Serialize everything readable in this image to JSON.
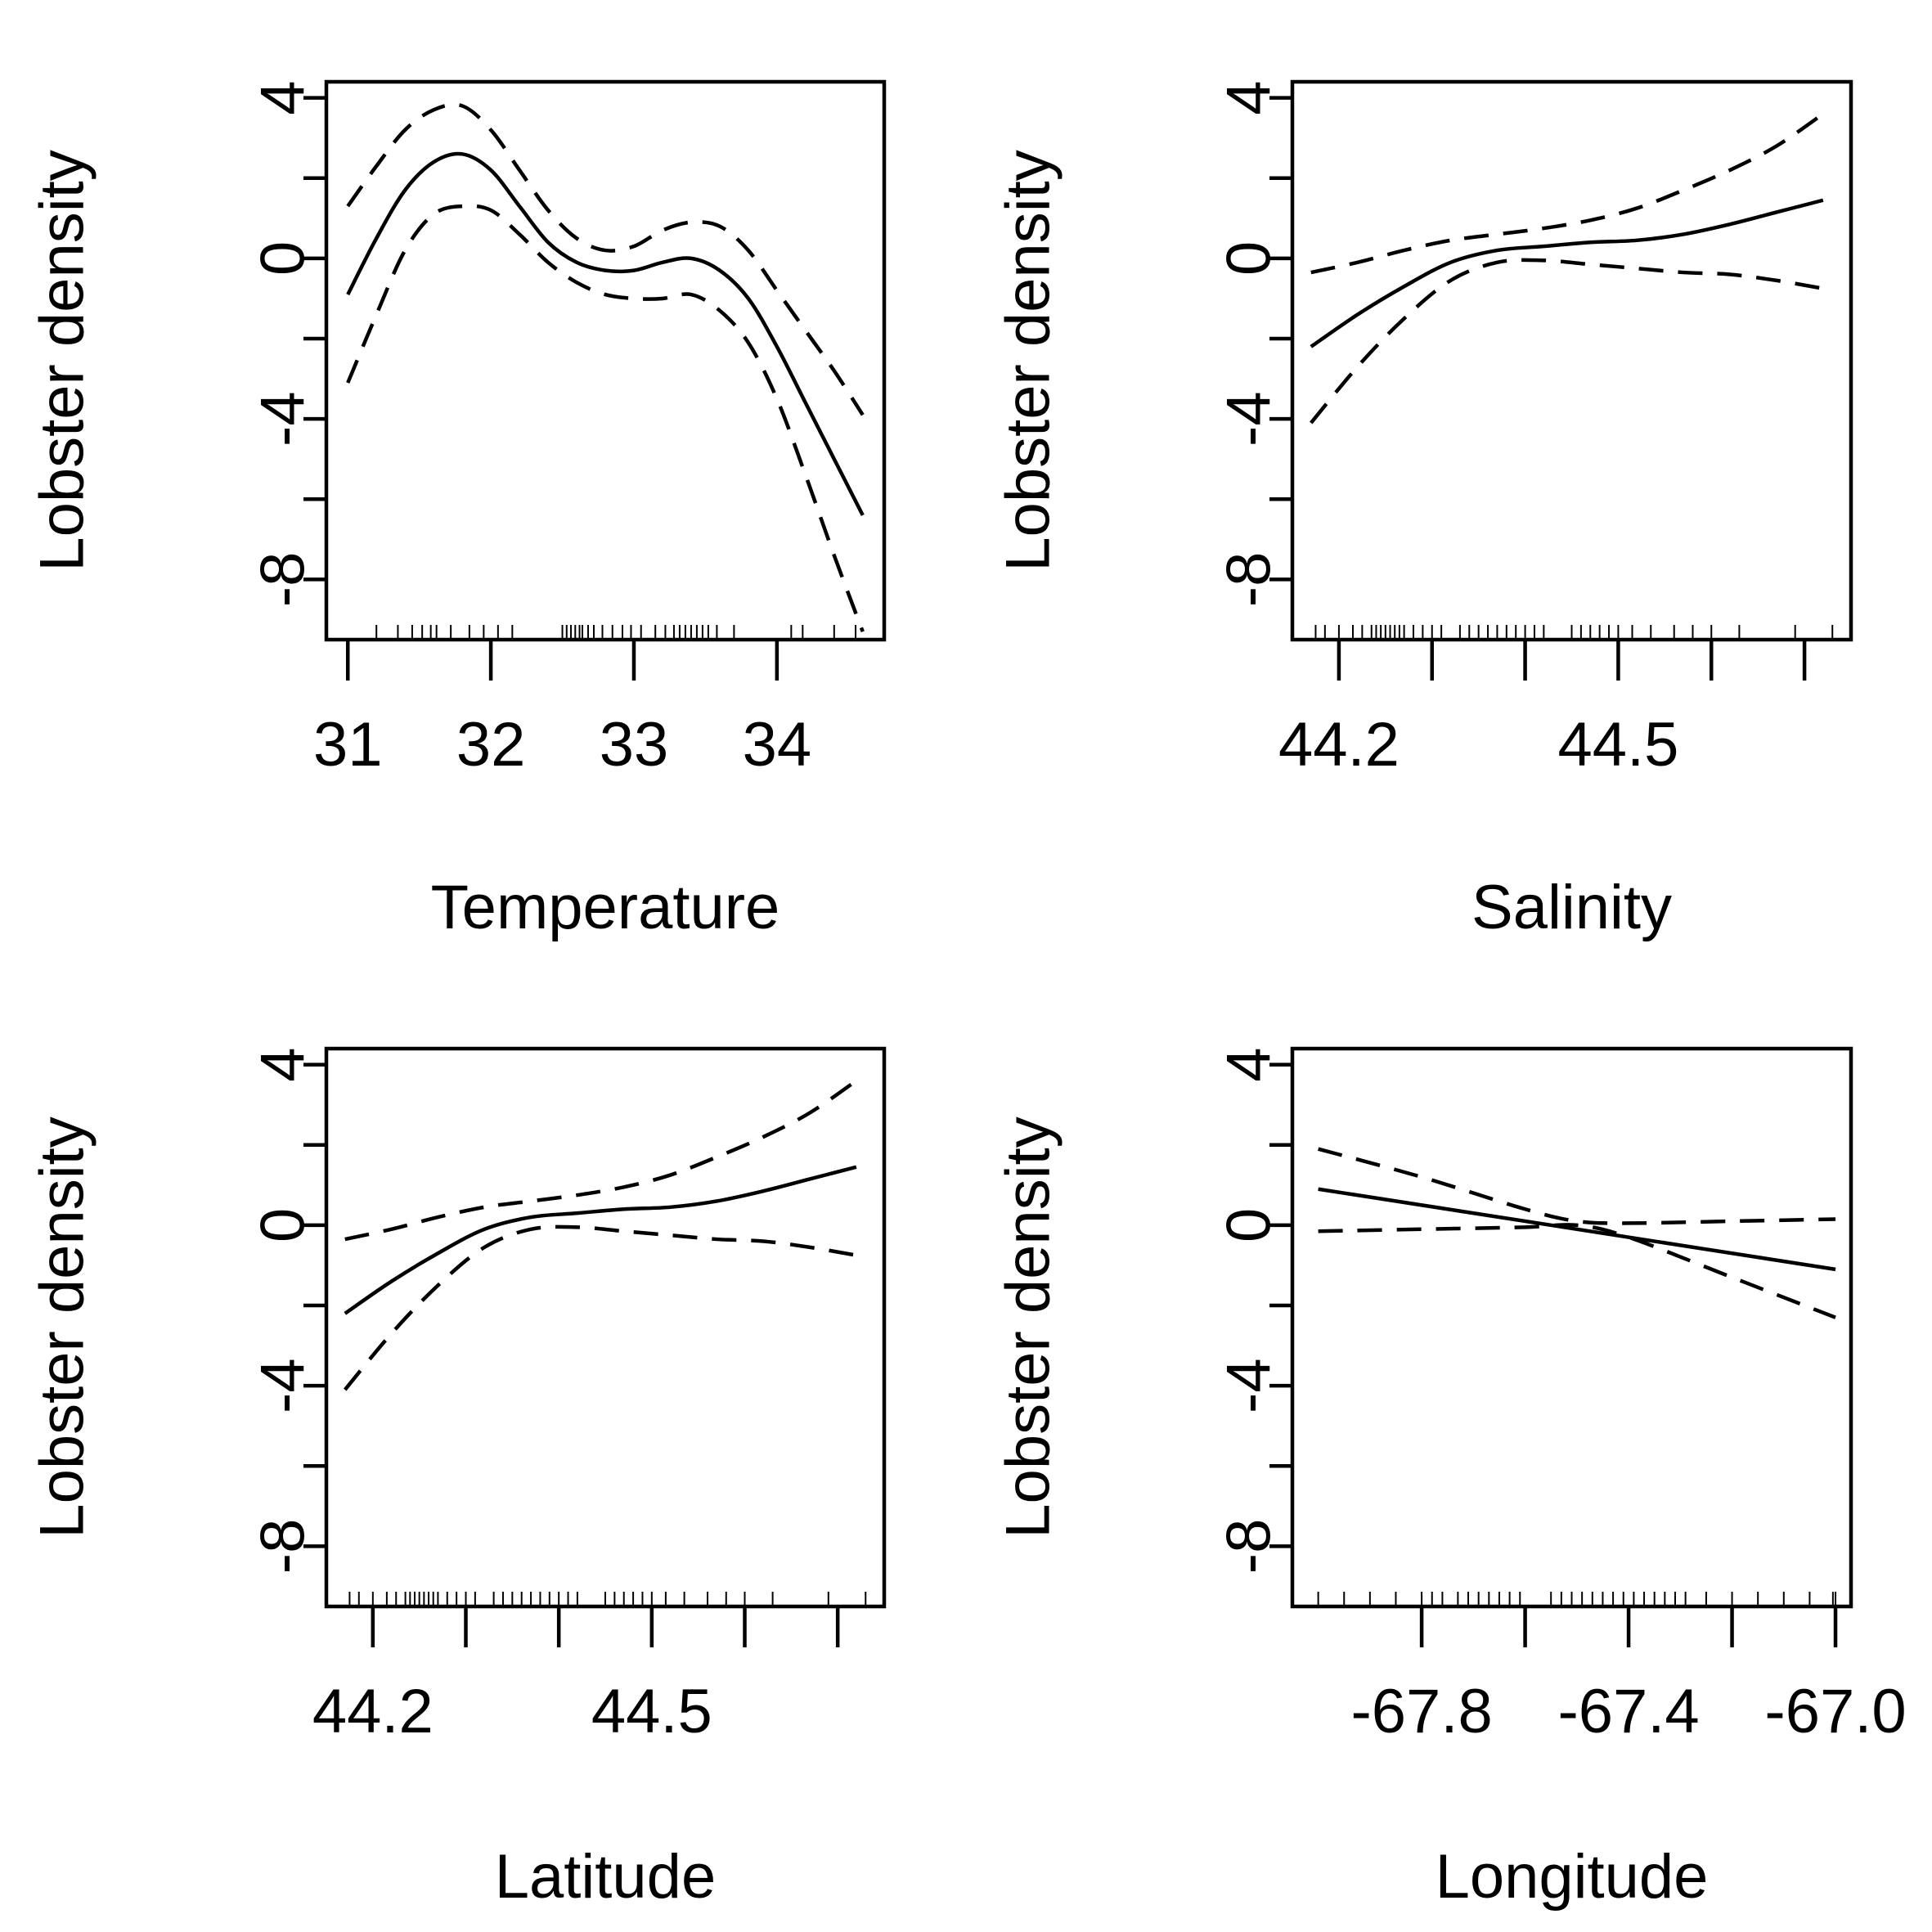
{
  "chart_data": [
    {
      "type": "line",
      "xlabel": "Temperature",
      "ylabel": "Lobster density",
      "xlim": [
        30.85,
        34.75
      ],
      "ylim": [
        -9.5,
        4.4
      ],
      "xticks": [
        31,
        32,
        33,
        34
      ],
      "xtick_labels": [
        "31",
        "32",
        "33",
        "34"
      ],
      "yticks": [
        -8,
        -6,
        -4,
        -2,
        0,
        2,
        4
      ],
      "ytick_labels": [
        "-8",
        "",
        "-4",
        "",
        "0",
        "",
        "4"
      ],
      "series": [
        {
          "role": "fit",
          "x": [
            31.0,
            31.2,
            31.4,
            31.6,
            31.8,
            32.0,
            32.2,
            32.4,
            32.6,
            32.8,
            33.0,
            33.2,
            33.4,
            33.6,
            33.8,
            34.0,
            34.2,
            34.4,
            34.6
          ],
          "y": [
            -0.9,
            0.5,
            1.7,
            2.4,
            2.6,
            2.2,
            1.3,
            0.4,
            -0.1,
            -0.3,
            -0.3,
            -0.1,
            0.0,
            -0.3,
            -1.0,
            -2.2,
            -3.6,
            -5.0,
            -6.4
          ]
        },
        {
          "role": "upper",
          "x": [
            31.0,
            31.2,
            31.4,
            31.6,
            31.8,
            32.0,
            32.2,
            32.4,
            32.6,
            32.8,
            33.0,
            33.2,
            33.4,
            33.6,
            33.8,
            34.0,
            34.2,
            34.4,
            34.6
          ],
          "y": [
            1.3,
            2.3,
            3.2,
            3.7,
            3.8,
            3.2,
            2.2,
            1.2,
            0.5,
            0.2,
            0.3,
            0.7,
            0.9,
            0.8,
            0.2,
            -0.8,
            -1.8,
            -2.8,
            -3.9
          ]
        },
        {
          "role": "lower",
          "x": [
            31.0,
            31.2,
            31.4,
            31.6,
            31.8,
            32.0,
            32.2,
            32.4,
            32.6,
            32.8,
            33.0,
            33.2,
            33.4,
            33.6,
            33.8,
            34.0,
            34.2,
            34.4,
            34.6
          ],
          "y": [
            -3.1,
            -1.4,
            0.2,
            1.1,
            1.3,
            1.2,
            0.6,
            -0.1,
            -0.6,
            -0.9,
            -1.0,
            -1.0,
            -0.9,
            -1.3,
            -2.1,
            -3.5,
            -5.4,
            -7.4,
            -9.3
          ]
        }
      ],
      "rug": [
        31.2,
        31.35,
        31.45,
        31.52,
        31.58,
        31.62,
        31.72,
        31.85,
        31.95,
        32.05,
        32.15,
        32.5,
        32.53,
        32.56,
        32.59,
        32.62,
        32.64,
        32.68,
        32.72,
        32.78,
        32.85,
        32.92,
        32.98,
        33.05,
        33.15,
        33.22,
        33.28,
        33.32,
        33.36,
        33.4,
        33.44,
        33.48,
        33.52,
        33.58,
        33.7,
        34.1,
        34.18,
        34.4,
        34.55
      ]
    },
    {
      "type": "line",
      "xlabel": "Salinity",
      "ylabel": "Lobster density",
      "xlim": [
        44.15,
        44.75
      ],
      "ylim": [
        -9.5,
        4.4
      ],
      "xticks": [
        44.2,
        44.3,
        44.4,
        44.5,
        44.6,
        44.7
      ],
      "xtick_labels": [
        "44.2",
        "",
        "",
        "44.5",
        "",
        ""
      ],
      "yticks": [
        -8,
        -6,
        -4,
        -2,
        0,
        2,
        4
      ],
      "ytick_labels": [
        "-8",
        "",
        "-4",
        "",
        "0",
        "",
        "4"
      ],
      "series": [
        {
          "role": "fit",
          "x": [
            44.17,
            44.22,
            44.27,
            44.32,
            44.37,
            44.42,
            44.47,
            44.52,
            44.57,
            44.62,
            44.67,
            44.72
          ],
          "y": [
            -2.2,
            -1.4,
            -0.7,
            -0.1,
            0.2,
            0.3,
            0.4,
            0.45,
            0.6,
            0.85,
            1.15,
            1.45
          ]
        },
        {
          "role": "upper",
          "x": [
            44.17,
            44.22,
            44.27,
            44.32,
            44.37,
            44.42,
            44.47,
            44.52,
            44.57,
            44.62,
            44.67,
            44.72
          ],
          "y": [
            -0.35,
            -0.1,
            0.2,
            0.45,
            0.6,
            0.75,
            0.95,
            1.25,
            1.7,
            2.2,
            2.8,
            3.6
          ]
        },
        {
          "role": "lower",
          "x": [
            44.17,
            44.22,
            44.27,
            44.32,
            44.37,
            44.42,
            44.47,
            44.52,
            44.57,
            44.62,
            44.67,
            44.72
          ],
          "y": [
            -4.1,
            -2.7,
            -1.5,
            -0.55,
            -0.1,
            -0.05,
            -0.15,
            -0.25,
            -0.35,
            -0.4,
            -0.55,
            -0.75
          ]
        }
      ],
      "rug": [
        44.175,
        44.185,
        44.2,
        44.215,
        44.225,
        44.235,
        44.24,
        44.245,
        44.25,
        44.255,
        44.26,
        44.265,
        44.27,
        44.28,
        44.29,
        44.3,
        44.31,
        44.33,
        44.34,
        44.35,
        44.36,
        44.37,
        44.38,
        44.39,
        44.4,
        44.41,
        44.42,
        44.45,
        44.46,
        44.47,
        44.48,
        44.49,
        44.5,
        44.515,
        44.535,
        44.56,
        44.58,
        44.6,
        44.63,
        44.69,
        44.73
      ]
    },
    {
      "type": "line",
      "xlabel": "Latitude",
      "ylabel": "Lobster density",
      "xlim": [
        44.15,
        44.75
      ],
      "ylim": [
        -9.5,
        4.4
      ],
      "xticks": [
        44.2,
        44.3,
        44.4,
        44.5,
        44.6,
        44.7
      ],
      "xtick_labels": [
        "44.2",
        "",
        "",
        "44.5",
        "",
        ""
      ],
      "yticks": [
        -8,
        -6,
        -4,
        -2,
        0,
        2,
        4
      ],
      "ytick_labels": [
        "-8",
        "",
        "-4",
        "",
        "0",
        "",
        "4"
      ],
      "series": [
        {
          "role": "fit",
          "x": [
            44.17,
            44.22,
            44.27,
            44.32,
            44.37,
            44.42,
            44.47,
            44.52,
            44.57,
            44.62,
            44.67,
            44.72
          ],
          "y": [
            -2.2,
            -1.4,
            -0.7,
            -0.1,
            0.2,
            0.3,
            0.4,
            0.45,
            0.6,
            0.85,
            1.15,
            1.45
          ]
        },
        {
          "role": "upper",
          "x": [
            44.17,
            44.22,
            44.27,
            44.32,
            44.37,
            44.42,
            44.47,
            44.52,
            44.57,
            44.62,
            44.67,
            44.72
          ],
          "y": [
            -0.35,
            -0.1,
            0.2,
            0.45,
            0.6,
            0.75,
            0.95,
            1.25,
            1.7,
            2.2,
            2.8,
            3.6
          ]
        },
        {
          "role": "lower",
          "x": [
            44.17,
            44.22,
            44.27,
            44.32,
            44.37,
            44.42,
            44.47,
            44.52,
            44.57,
            44.62,
            44.67,
            44.72
          ],
          "y": [
            -4.1,
            -2.7,
            -1.5,
            -0.55,
            -0.1,
            -0.05,
            -0.15,
            -0.25,
            -0.35,
            -0.4,
            -0.55,
            -0.75
          ]
        }
      ],
      "rug": [
        44.175,
        44.185,
        44.2,
        44.215,
        44.225,
        44.235,
        44.24,
        44.245,
        44.25,
        44.255,
        44.26,
        44.265,
        44.27,
        44.28,
        44.29,
        44.3,
        44.31,
        44.33,
        44.34,
        44.35,
        44.36,
        44.37,
        44.38,
        44.39,
        44.4,
        44.41,
        44.42,
        44.45,
        44.46,
        44.47,
        44.48,
        44.49,
        44.5,
        44.515,
        44.535,
        44.56,
        44.58,
        44.6,
        44.63,
        44.69,
        44.73
      ]
    },
    {
      "type": "line",
      "xlabel": "Longitude",
      "ylabel": "Lobster density",
      "xlim": [
        -68.05,
        -66.97
      ],
      "ylim": [
        -9.5,
        4.4
      ],
      "xticks": [
        -67.8,
        -67.6,
        -67.4,
        -67.2,
        -67.0
      ],
      "xtick_labels": [
        "-67.8",
        "",
        "-67.4",
        "",
        "-67.0"
      ],
      "yticks": [
        -8,
        -6,
        -4,
        -2,
        0,
        2,
        4
      ],
      "ytick_labels": [
        "-8",
        "",
        "-4",
        "",
        "0",
        "",
        "4"
      ],
      "series": [
        {
          "role": "fit",
          "x": [
            -68.0,
            -67.0
          ],
          "y": [
            0.9,
            -1.1
          ]
        },
        {
          "role": "upper",
          "x": [
            -68.0,
            -67.8,
            -67.6,
            -67.5,
            -67.4,
            -67.2,
            -67.0
          ],
          "y": [
            1.9,
            1.2,
            0.4,
            0.1,
            0.05,
            0.1,
            0.15
          ]
        },
        {
          "role": "lower",
          "x": [
            -68.0,
            -67.8,
            -67.6,
            -67.5,
            -67.4,
            -67.2,
            -67.0
          ],
          "y": [
            -0.15,
            -0.1,
            -0.05,
            0.0,
            -0.3,
            -1.3,
            -2.3
          ]
        }
      ],
      "rug": [
        -68.0,
        -67.95,
        -67.9,
        -67.85,
        -67.8,
        -67.78,
        -67.76,
        -67.73,
        -67.71,
        -67.69,
        -67.67,
        -67.65,
        -67.63,
        -67.61,
        -67.55,
        -67.53,
        -67.51,
        -67.49,
        -67.47,
        -67.45,
        -67.43,
        -67.41,
        -67.39,
        -67.37,
        -67.35,
        -67.33,
        -67.31,
        -67.29,
        -67.25,
        -67.2,
        -67.15,
        -67.1,
        -67.05,
        -67.0,
        -67.005
      ]
    }
  ]
}
